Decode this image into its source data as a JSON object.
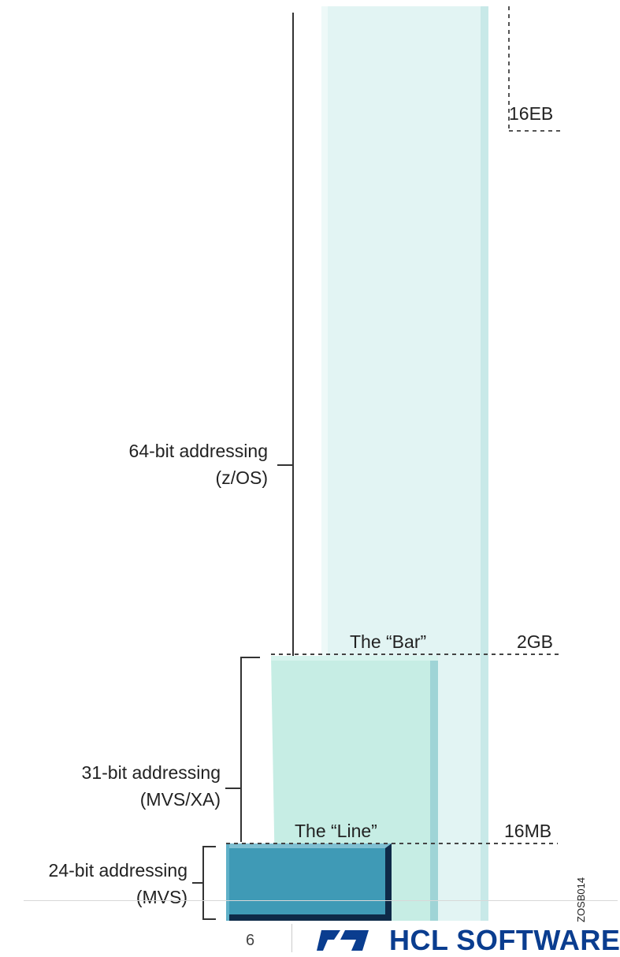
{
  "labels": {
    "addr64_line1": "64-bit addressing",
    "addr64_line2": "(z/OS)",
    "addr31_line1": "31-bit addressing",
    "addr31_line2": "(MVS/XA)",
    "addr24_line1": "24-bit addressing",
    "addr24_line2": "(MVS)",
    "the_bar": "The “Bar”",
    "the_line": "The “Line”",
    "size_16eb": "16EB",
    "size_2gb": "2GB",
    "size_16mb": "16MB",
    "figure_id": "ZOSB014"
  },
  "footer": {
    "page_number": "6",
    "brand": "HCL SOFTWARE"
  },
  "colors": {
    "column_64": "#e2f4f3",
    "column_31": "#c6ede4",
    "block_24": "#3f9ab6",
    "block_24_dark": "#0e2a48",
    "brand_blue": "#0a3d8f"
  }
}
